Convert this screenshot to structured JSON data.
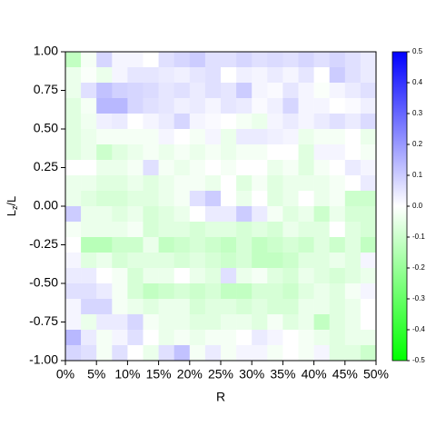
{
  "chart_data": {
    "type": "heatmap",
    "xlabel": "R",
    "ylabel_parts": [
      "L",
      "z",
      "/L"
    ],
    "x": [
      1.25,
      3.75,
      6.25,
      8.75,
      11.25,
      13.75,
      16.25,
      18.75,
      21.25,
      23.75,
      26.25,
      28.75,
      31.25,
      33.75,
      36.25,
      38.75,
      41.25,
      43.75,
      46.25,
      48.75
    ],
    "y": [
      0.95,
      0.85,
      0.75,
      0.65,
      0.55,
      0.45,
      0.35,
      0.25,
      0.15,
      0.05,
      -0.05,
      -0.15,
      -0.25,
      -0.35,
      -0.45,
      -0.55,
      -0.65,
      -0.75,
      -0.85,
      -0.95
    ],
    "z": [
      [
        -0.12,
        -0.02,
        0.08,
        0.02,
        0.02,
        0.0,
        0.06,
        0.08,
        0.1,
        0.06,
        0.06,
        0.08,
        0.06,
        0.07,
        0.06,
        0.08,
        0.06,
        0.08,
        0.06,
        0.04
      ],
      [
        -0.04,
        -0.01,
        -0.04,
        0.02,
        0.05,
        0.05,
        0.04,
        0.03,
        0.05,
        0.06,
        0.0,
        0.03,
        0.02,
        0.04,
        0.02,
        0.05,
        0.0,
        0.1,
        0.06,
        0.04
      ],
      [
        -0.04,
        0.06,
        0.12,
        0.09,
        0.08,
        0.07,
        0.05,
        0.06,
        0.04,
        0.06,
        0.05,
        0.1,
        0.02,
        0.01,
        0.05,
        0.02,
        -0.01,
        0.02,
        0.04,
        0.06
      ],
      [
        -0.06,
        -0.02,
        0.14,
        0.14,
        0.08,
        0.06,
        0.05,
        0.03,
        0.04,
        0.02,
        0.05,
        0.04,
        0.01,
        0.03,
        0.08,
        0.02,
        0.02,
        0.0,
        0.01,
        0.03
      ],
      [
        -0.06,
        -0.03,
        0.03,
        0.04,
        0.0,
        0.02,
        0.04,
        0.08,
        0.02,
        0.01,
        0.0,
        -0.02,
        -0.04,
        0.02,
        0.04,
        0.02,
        0.04,
        0.06,
        0.04,
        0.07
      ],
      [
        -0.06,
        -0.04,
        -0.02,
        -0.02,
        -0.02,
        -0.02,
        0.02,
        0.0,
        -0.02,
        0.02,
        -0.04,
        0.04,
        0.04,
        0.03,
        0.02,
        -0.04,
        -0.02,
        -0.02,
        0.0,
        -0.04
      ],
      [
        -0.06,
        -0.04,
        -0.1,
        -0.06,
        -0.04,
        -0.02,
        -0.04,
        -0.02,
        -0.04,
        -0.02,
        -0.04,
        -0.02,
        -0.02,
        0.0,
        0.0,
        -0.06,
        0.02,
        0.02,
        0.0,
        -0.02
      ],
      [
        0.0,
        0.0,
        -0.04,
        -0.04,
        -0.02,
        0.06,
        -0.02,
        -0.04,
        -0.02,
        0.0,
        -0.02,
        0.0,
        0.0,
        -0.04,
        -0.02,
        -0.06,
        -0.02,
        0.0,
        0.04,
        0.02
      ],
      [
        -0.04,
        -0.04,
        -0.06,
        -0.06,
        -0.04,
        -0.06,
        -0.04,
        -0.02,
        -0.02,
        -0.04,
        0.0,
        -0.06,
        -0.02,
        -0.06,
        -0.04,
        -0.04,
        -0.04,
        -0.02,
        0.0,
        0.04
      ],
      [
        -0.04,
        -0.06,
        -0.08,
        -0.08,
        -0.06,
        -0.06,
        -0.04,
        -0.02,
        0.06,
        0.1,
        0.0,
        -0.04,
        0.0,
        -0.06,
        -0.04,
        0.0,
        -0.04,
        -0.02,
        -0.1,
        -0.1
      ],
      [
        0.1,
        -0.04,
        -0.04,
        -0.06,
        -0.04,
        -0.08,
        -0.06,
        -0.04,
        0.0,
        0.04,
        0.04,
        0.1,
        0.04,
        -0.02,
        -0.06,
        -0.04,
        -0.1,
        -0.04,
        -0.08,
        -0.08
      ],
      [
        -0.02,
        -0.04,
        -0.04,
        -0.04,
        -0.02,
        -0.08,
        -0.06,
        -0.06,
        -0.08,
        -0.06,
        -0.06,
        -0.08,
        -0.06,
        -0.08,
        -0.04,
        -0.06,
        -0.06,
        0.0,
        -0.06,
        -0.08
      ],
      [
        0.0,
        -0.14,
        -0.14,
        -0.1,
        -0.1,
        -0.04,
        -0.12,
        -0.1,
        -0.08,
        -0.1,
        -0.12,
        -0.08,
        -0.12,
        -0.1,
        -0.08,
        -0.1,
        -0.06,
        -0.1,
        -0.06,
        -0.12
      ],
      [
        0.02,
        -0.06,
        -0.04,
        -0.08,
        -0.06,
        -0.06,
        -0.06,
        -0.08,
        -0.06,
        -0.08,
        -0.1,
        -0.08,
        -0.12,
        -0.12,
        -0.1,
        -0.06,
        -0.06,
        -0.04,
        -0.06,
        0.02
      ],
      [
        0.04,
        0.04,
        0.0,
        -0.02,
        -0.08,
        -0.04,
        -0.04,
        0.0,
        -0.04,
        -0.06,
        0.06,
        -0.04,
        -0.02,
        -0.06,
        -0.08,
        -0.04,
        -0.06,
        -0.08,
        -0.06,
        -0.04
      ],
      [
        0.06,
        0.06,
        0.04,
        -0.02,
        -0.08,
        -0.12,
        -0.1,
        -0.08,
        -0.1,
        -0.08,
        -0.12,
        -0.12,
        -0.08,
        -0.08,
        -0.1,
        -0.06,
        -0.04,
        -0.06,
        -0.02,
        0.02
      ],
      [
        0.02,
        0.08,
        0.08,
        -0.02,
        -0.04,
        -0.06,
        -0.04,
        -0.04,
        -0.08,
        -0.06,
        -0.06,
        -0.08,
        -0.06,
        -0.08,
        -0.08,
        -0.04,
        -0.04,
        -0.06,
        -0.04,
        0.0
      ],
      [
        0.02,
        -0.04,
        0.04,
        0.04,
        0.08,
        -0.02,
        -0.04,
        -0.04,
        -0.06,
        -0.06,
        -0.04,
        -0.04,
        -0.06,
        -0.02,
        -0.06,
        -0.04,
        -0.12,
        -0.06,
        -0.04,
        0.0
      ],
      [
        0.14,
        0.04,
        -0.02,
        0.02,
        0.06,
        0.0,
        -0.04,
        -0.02,
        -0.04,
        -0.02,
        -0.02,
        0.0,
        0.04,
        0.02,
        0.0,
        -0.02,
        -0.04,
        -0.06,
        -0.04,
        -0.04
      ],
      [
        0.08,
        0.06,
        -0.02,
        0.06,
        0.0,
        -0.04,
        0.06,
        0.12,
        -0.02,
        0.04,
        -0.02,
        0.02,
        0.02,
        -0.02,
        0.0,
        -0.02,
        0.02,
        -0.06,
        -0.06,
        -0.1
      ]
    ],
    "xlim": [
      0,
      50
    ],
    "xticks": [
      {
        "value": 0,
        "label": "0%"
      },
      {
        "value": 5,
        "label": "5%"
      },
      {
        "value": 10,
        "label": "10%"
      },
      {
        "value": 15,
        "label": "15%"
      },
      {
        "value": 20,
        "label": "20%"
      },
      {
        "value": 25,
        "label": "25%"
      },
      {
        "value": 30,
        "label": "30%"
      },
      {
        "value": 35,
        "label": "35%"
      },
      {
        "value": 40,
        "label": "40%"
      },
      {
        "value": 45,
        "label": "45%"
      },
      {
        "value": 50,
        "label": "50%"
      }
    ],
    "ylim": [
      -1,
      1
    ],
    "yticks": [
      {
        "value": -1,
        "label": "-1.00"
      },
      {
        "value": -0.75,
        "label": "-0.75"
      },
      {
        "value": -0.5,
        "label": "-0.50"
      },
      {
        "value": -0.25,
        "label": "-0.25"
      },
      {
        "value": 0,
        "label": "0.00"
      },
      {
        "value": 0.25,
        "label": "0.25"
      },
      {
        "value": 0.5,
        "label": "0.50"
      },
      {
        "value": 0.75,
        "label": "0.75"
      },
      {
        "value": 1,
        "label": "1.00"
      }
    ],
    "zlim": [
      -0.5,
      0.5
    ],
    "zticks": [
      -0.5,
      -0.4,
      -0.3,
      -0.2,
      -0.1,
      {
        "value": 0,
        "label": "0.0"
      },
      0.1,
      0.2,
      0.3,
      0.4,
      0.5
    ],
    "colorscale": [
      {
        "value": -0.5,
        "color": "#00ff00"
      },
      {
        "value": 0,
        "color": "#ffffff"
      },
      {
        "value": 0.5,
        "color": "#0000ff"
      }
    ]
  }
}
